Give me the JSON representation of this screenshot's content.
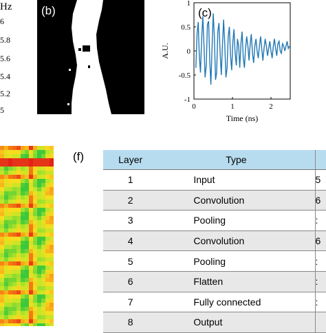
{
  "panel_a": {
    "unit_label": "Hz",
    "ticks": [
      "6",
      "5.8",
      "5.6",
      "5.4",
      "5.2",
      "5"
    ]
  },
  "panel_b": {
    "label": "(b)"
  },
  "panel_c": {
    "label": "(c)"
  },
  "panel_f": {
    "label": "(f)"
  },
  "table": {
    "headers": [
      "Layer",
      "Type"
    ],
    "rows": [
      {
        "layer": "1",
        "type": "Input",
        "extra": "5"
      },
      {
        "layer": "2",
        "type": "Convolution",
        "extra": "6"
      },
      {
        "layer": "3",
        "type": "Pooling",
        "extra": ":"
      },
      {
        "layer": "4",
        "type": "Convolution",
        "extra": "6"
      },
      {
        "layer": "5",
        "type": "Pooling",
        "extra": ":"
      },
      {
        "layer": "6",
        "type": "Flatten",
        "extra": ":"
      },
      {
        "layer": "7",
        "type": "Fully connected",
        "extra": ":"
      },
      {
        "layer": "8",
        "type": "Output",
        "extra": ""
      }
    ]
  },
  "colors": {
    "signal": "#1f77b4",
    "table_header": "#b8dcef",
    "row_alt": "#e8e8e8"
  },
  "chart_data": {
    "type": "line",
    "title": "",
    "xlabel": "Time (ns)",
    "ylabel": "A.U.",
    "xlim": [
      0,
      2.5
    ],
    "ylim": [
      -1,
      1
    ],
    "xticks": [
      "0",
      "1",
      "2"
    ],
    "yticks": [
      "1",
      "0.5",
      "0",
      "-0.5",
      "-1"
    ],
    "grid": false,
    "series": [
      {
        "x": [
          0.05,
          0.08,
          0.11,
          0.14,
          0.17,
          0.2,
          0.23,
          0.26,
          0.29,
          0.32,
          0.35,
          0.38,
          0.41,
          0.44,
          0.47,
          0.5,
          0.53,
          0.56,
          0.59,
          0.62,
          0.65,
          0.68,
          0.71,
          0.74,
          0.77,
          0.8,
          0.83,
          0.86,
          0.89,
          0.92,
          0.95,
          0.98,
          1.01,
          1.04,
          1.07,
          1.1,
          1.13,
          1.16,
          1.19,
          1.22,
          1.25,
          1.28,
          1.31,
          1.34,
          1.37,
          1.4,
          1.43,
          1.46,
          1.49,
          1.52,
          1.55,
          1.58,
          1.61,
          1.64,
          1.67,
          1.7,
          1.73,
          1.76,
          1.79,
          1.82,
          1.85,
          1.88,
          1.91,
          1.94,
          1.97,
          2.0,
          2.03,
          2.06,
          2.09,
          2.12,
          2.15,
          2.18,
          2.21,
          2.24,
          2.27,
          2.3,
          2.33,
          2.36,
          2.39,
          2.42,
          2.45,
          2.48
        ],
        "y": [
          -0.35,
          0.35,
          0.6,
          -0.1,
          -0.45,
          0.25,
          0.72,
          0.1,
          -0.55,
          -0.3,
          0.55,
          0.62,
          -0.2,
          -0.7,
          0.05,
          0.78,
          0.3,
          -0.6,
          -0.45,
          0.4,
          0.58,
          -0.05,
          -0.5,
          0.1,
          0.65,
          0.15,
          -0.55,
          -0.35,
          0.3,
          0.5,
          -0.1,
          -0.4,
          0.2,
          0.45,
          -0.05,
          -0.3,
          0.25,
          0.1,
          -0.35,
          0.15,
          0.4,
          -0.15,
          -0.35,
          0.05,
          0.3,
          0.1,
          -0.2,
          0.15,
          0.35,
          -0.05,
          -0.25,
          0.1,
          0.25,
          0.0,
          -0.15,
          0.1,
          0.3,
          0.05,
          -0.2,
          0.05,
          0.25,
          0.1,
          -0.1,
          0.05,
          0.2,
          0.0,
          -0.15,
          0.1,
          0.25,
          0.05,
          -0.1,
          0.15,
          0.2,
          0.0,
          -0.05,
          0.15,
          0.1,
          0.0,
          0.1,
          0.2,
          0.05,
          0.1
        ]
      }
    ]
  }
}
